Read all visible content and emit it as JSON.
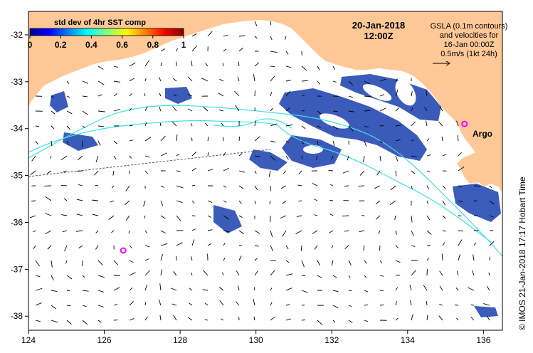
{
  "map": {
    "date_label": "20-Jan-2018",
    "time_label": "12:00Z",
    "colorbar": {
      "title": "std dev of 4hr SST comp",
      "tick_labels": [
        "0",
        "0.2",
        "0.4",
        "0.6",
        "0.8",
        "1"
      ],
      "colors": [
        "#00008f",
        "#0000ff",
        "#0080ff",
        "#00ffff",
        "#80ff80",
        "#ffff00",
        "#ff8000",
        "#ff0000",
        "#800000"
      ]
    },
    "legend_note": {
      "line1": "GSLA (0.1m contours)",
      "line2": "and velocities for",
      "line3": "16-Jan 00:00Z",
      "line4": "0.5m/s (1kt 24h)"
    },
    "argo_label": "Argo",
    "credit": "© IMOS 21-Jan-2018 17:17 Hobart Time",
    "x_ticks": [
      "124",
      "126",
      "128",
      "130",
      "132",
      "134",
      "136"
    ],
    "y_ticks": [
      "-32",
      "-33",
      "-34",
      "-35",
      "-36",
      "-37",
      "-38"
    ],
    "land_color": "#ffc896",
    "contour_color": "#40e0e8",
    "argo_color": "#ff00ff",
    "argo_floats": [
      {
        "lon": 135.5,
        "lat": -33.9
      },
      {
        "lon": 126.5,
        "lat": -36.6
      }
    ]
  }
}
